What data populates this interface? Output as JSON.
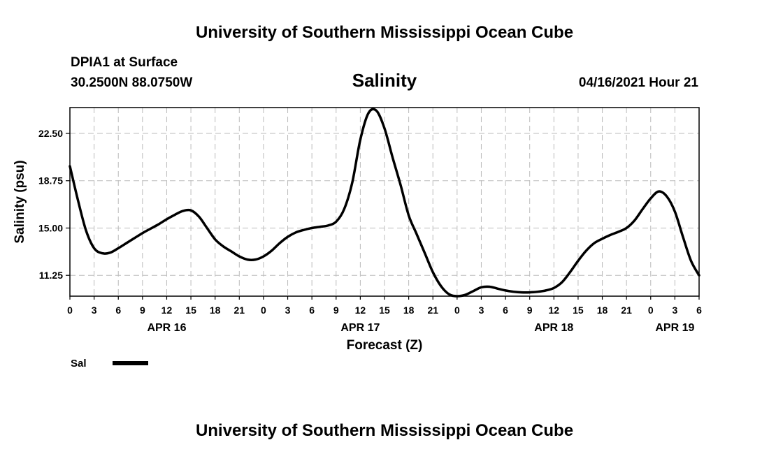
{
  "header": {
    "title_top": "University of Southern Mississippi Ocean Cube",
    "title_bottom": "University of Southern Mississippi Ocean Cube",
    "station": "DPIA1 at Surface",
    "coords": "30.2500N  88.0750W",
    "datetime": "04/16/2021 Hour 21"
  },
  "legend": {
    "label": "Sal"
  },
  "chart_data": {
    "type": "line",
    "title": "Salinity",
    "xlabel": "Forecast (Z)",
    "ylabel": "Salinity (psu)",
    "xlim": [
      0,
      78
    ],
    "ylim": [
      9.6,
      24.55
    ],
    "yticks": [
      11.25,
      15.0,
      18.75,
      22.5
    ],
    "ytick_labels": [
      "11.25",
      "15.00",
      "18.75",
      "22.50"
    ],
    "xtick_labels": [
      "0",
      "3",
      "6",
      "9",
      "12",
      "15",
      "18",
      "21",
      "0",
      "3",
      "6",
      "9",
      "12",
      "15",
      "18",
      "21",
      "0",
      "3",
      "6",
      "9",
      "12",
      "15",
      "18",
      "21",
      "0",
      "3",
      "6"
    ],
    "date_labels": [
      {
        "label": "APR 16",
        "x": 12
      },
      {
        "label": "APR 17",
        "x": 36
      },
      {
        "label": "APR 18",
        "x": 60
      },
      {
        "label": "APR 19",
        "x": 75
      }
    ],
    "grid": true,
    "series": [
      {
        "name": "Sal",
        "x": [
          0,
          1,
          2,
          3,
          4,
          5,
          6,
          7,
          8,
          9,
          10,
          11,
          12,
          13,
          14,
          15,
          16,
          17,
          18,
          19,
          20,
          21,
          22,
          23,
          24,
          25,
          26,
          27,
          28,
          29,
          30,
          31,
          32,
          33,
          34,
          35,
          36,
          37,
          38,
          39,
          40,
          41,
          42,
          43,
          44,
          45,
          46,
          47,
          48,
          49,
          50,
          51,
          52,
          53,
          54,
          55,
          56,
          57,
          58,
          59,
          60,
          61,
          62,
          63,
          64,
          65,
          66,
          67,
          68,
          69,
          70,
          71,
          72,
          73,
          74,
          75,
          76,
          77,
          78
        ],
        "values": [
          19.9,
          17.2,
          14.8,
          13.4,
          13.0,
          13.05,
          13.4,
          13.8,
          14.2,
          14.6,
          14.95,
          15.3,
          15.7,
          16.05,
          16.35,
          16.4,
          15.9,
          15.0,
          14.1,
          13.55,
          13.15,
          12.75,
          12.5,
          12.5,
          12.75,
          13.2,
          13.8,
          14.3,
          14.65,
          14.85,
          15.0,
          15.1,
          15.2,
          15.5,
          16.5,
          18.6,
          22.0,
          24.1,
          24.3,
          22.9,
          20.6,
          18.4,
          16.0,
          14.5,
          13.0,
          11.5,
          10.4,
          9.75,
          9.6,
          9.7,
          10.0,
          10.3,
          10.35,
          10.2,
          10.05,
          9.95,
          9.9,
          9.9,
          9.95,
          10.05,
          10.25,
          10.7,
          11.5,
          12.4,
          13.2,
          13.8,
          14.15,
          14.45,
          14.7,
          15.0,
          15.6,
          16.5,
          17.35,
          17.9,
          17.5,
          16.3,
          14.3,
          12.4,
          11.25
        ]
      }
    ]
  }
}
